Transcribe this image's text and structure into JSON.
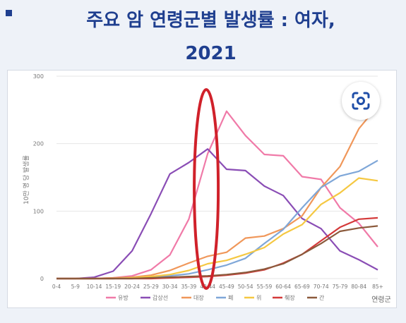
{
  "header": {
    "title_line1": "주요 암 연령군별 발생률 : 여자,",
    "title_line2": "2021"
  },
  "lens_button": {
    "icon": "lens-search-icon",
    "color": "#1f4ea8"
  },
  "annotation": {
    "type": "hand-drawn-ellipse",
    "color": "#d0212a",
    "target_category": "40-44"
  },
  "chart_data": {
    "type": "line",
    "ylabel": "10만 명 당 발생률",
    "xlabel": "연령군",
    "ylim": [
      0,
      300
    ],
    "yticks": [
      0,
      100,
      200,
      300
    ],
    "grid": true,
    "legend_position": "bottom",
    "categories": [
      "0-4",
      "5-9",
      "10-14",
      "15-19",
      "20-24",
      "25-29",
      "30-34",
      "35-39",
      "40-44",
      "45-49",
      "50-54",
      "55-59",
      "60-64",
      "65-69",
      "70-74",
      "75-79",
      "80-84",
      "85+"
    ],
    "series": [
      {
        "name": "유방",
        "color": "#f07aa8",
        "values": [
          0,
          0,
          0,
          1,
          4,
          13,
          35,
          88,
          185,
          248,
          212,
          184,
          182,
          151,
          147,
          105,
          82,
          47
        ]
      },
      {
        "name": "갑상선",
        "color": "#8a4db5",
        "values": [
          0,
          0,
          2,
          11,
          41,
          96,
          155,
          172,
          192,
          162,
          160,
          137,
          123,
          89,
          74,
          41,
          28,
          13
        ]
      },
      {
        "name": "대장",
        "color": "#f0975a",
        "values": [
          0,
          0,
          0,
          1,
          2,
          5,
          12,
          23,
          33,
          39,
          60,
          63,
          74,
          93,
          135,
          166,
          222,
          256
        ]
      },
      {
        "name": "폐",
        "color": "#7fa7d8",
        "values": [
          0,
          0,
          0,
          0,
          1,
          2,
          4,
          7,
          13,
          20,
          30,
          52,
          73,
          105,
          135,
          152,
          159,
          175
        ]
      },
      {
        "name": "위",
        "color": "#f5c842",
        "values": [
          0,
          0,
          0,
          0,
          1,
          3,
          6,
          12,
          22,
          27,
          36,
          46,
          66,
          80,
          110,
          127,
          149,
          145
        ]
      },
      {
        "name": "췌장",
        "color": "#d43a3a",
        "values": [
          0,
          0,
          0,
          0,
          0,
          0,
          1,
          2,
          3,
          5,
          8,
          13,
          23,
          36,
          56,
          76,
          88,
          90
        ]
      },
      {
        "name": "간",
        "color": "#8b5a3c",
        "values": [
          0,
          0,
          0,
          0,
          0,
          1,
          2,
          3,
          4,
          6,
          9,
          14,
          22,
          36,
          52,
          70,
          75,
          78
        ]
      }
    ]
  }
}
